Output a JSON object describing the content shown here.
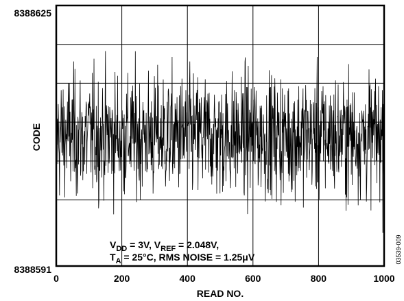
{
  "chart_data": {
    "type": "line",
    "xlabel": "READ NO.",
    "ylabel": "CODE",
    "xlim": [
      0,
      1000
    ],
    "ylim": [
      8388591,
      8388625
    ],
    "x_ticks": [
      "0",
      "200",
      "400",
      "600",
      "800",
      "1000"
    ],
    "y_ticks": [
      "8388625",
      "8388591"
    ],
    "grid": true,
    "annotation": {
      "line1": {
        "v": "V",
        "dd": "DD",
        "mid": " = 3V, V",
        "ref": "REF",
        "end": " = 2.048V,"
      },
      "line2": {
        "t": "T",
        "a": "A",
        "end": " = 25°C, RMS NOISE = 1.25μV"
      }
    },
    "figure_id": "03539-009",
    "series": [
      {
        "mean": 8388608,
        "rms": 4.0,
        "peak_max": 8388623,
        "peak_min": 8388593,
        "points": 1000
      }
    ],
    "colors": {
      "line": "#000000",
      "grid": "#000000",
      "background": "#ffffff"
    }
  }
}
